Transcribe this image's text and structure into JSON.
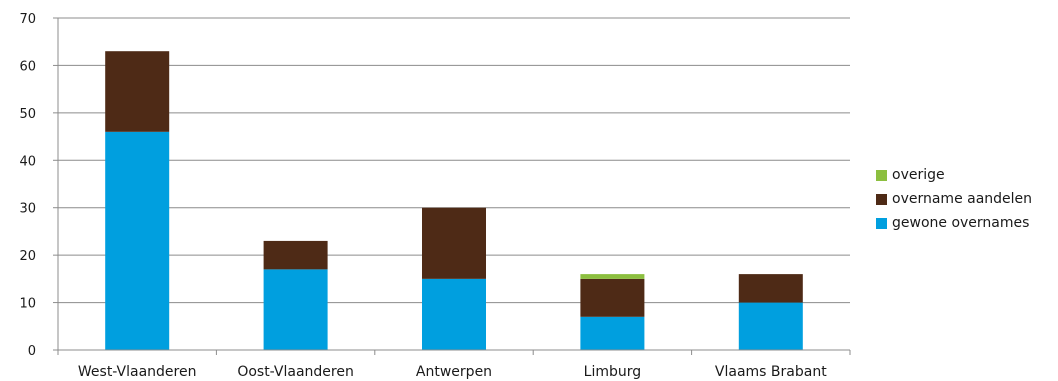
{
  "chart_data": {
    "type": "bar",
    "stacked": true,
    "categories": [
      "West-Vlaanderen",
      "Oost-Vlaanderen",
      "Antwerpen",
      "Limburg",
      "Vlaams Brabant"
    ],
    "series": [
      {
        "name": "gewone overnames",
        "color": "#009fdf",
        "values": [
          46,
          17,
          15,
          7,
          10
        ]
      },
      {
        "name": "overname aandelen",
        "color": "#4e2a16",
        "values": [
          17,
          6,
          15,
          8,
          6
        ]
      },
      {
        "name": "overige",
        "color": "#8cbf3f",
        "values": [
          0,
          0,
          0,
          1,
          0
        ]
      }
    ],
    "y_ticks": [
      "0",
      "10",
      "20",
      "30",
      "40",
      "50",
      "60",
      "70"
    ],
    "ylim": [
      0,
      70
    ],
    "grid": true,
    "legend_position": "right",
    "legend_order": [
      "overige",
      "overname aandelen",
      "gewone overnames"
    ],
    "title": "",
    "xlabel": "",
    "ylabel": ""
  }
}
